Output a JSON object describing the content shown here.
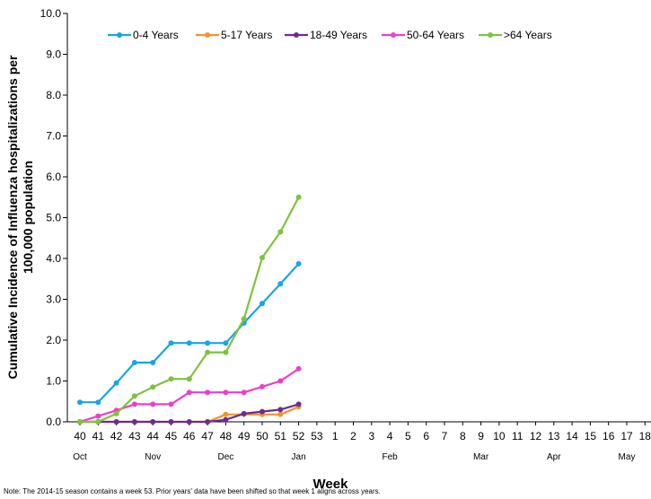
{
  "chart_data": {
    "type": "line",
    "xlabel": "Week",
    "ylabel_line1": "Cumulative Incidence of Influenza hospitalizations per",
    "ylabel_line2": "100,000 population",
    "ylim": [
      0,
      10
    ],
    "yticks": [
      "0.0",
      "1.0",
      "2.0",
      "3.0",
      "4.0",
      "5.0",
      "6.0",
      "7.0",
      "8.0",
      "9.0",
      "10.0"
    ],
    "x_ticks": [
      "40",
      "41",
      "42",
      "43",
      "44",
      "45",
      "46",
      "47",
      "48",
      "49",
      "50",
      "51",
      "52",
      "53",
      "1",
      "2",
      "3",
      "4",
      "5",
      "6",
      "7",
      "8",
      "9",
      "10",
      "11",
      "12",
      "13",
      "14",
      "15",
      "16",
      "17",
      "18"
    ],
    "months": [
      {
        "label": "Oct",
        "at": "40"
      },
      {
        "label": "Nov",
        "at": "44"
      },
      {
        "label": "Dec",
        "at": "48"
      },
      {
        "label": "Jan",
        "at": "52"
      },
      {
        "label": "Feb",
        "at": "4"
      },
      {
        "label": "Mar",
        "at": "9"
      },
      {
        "label": "Apr",
        "at": "13"
      },
      {
        "label": "May",
        "at": "17"
      }
    ],
    "legend_position": "top",
    "grid": false,
    "series": [
      {
        "name": "0-4 Years",
        "color": "#1aa3e8",
        "x": [
          "40",
          "41",
          "42",
          "43",
          "44",
          "45",
          "46",
          "47",
          "48",
          "49",
          "50",
          "51",
          "52"
        ],
        "values": [
          0.48,
          0.48,
          0.95,
          1.45,
          1.45,
          1.93,
          1.93,
          1.93,
          1.93,
          2.42,
          2.9,
          3.38,
          3.87
        ]
      },
      {
        "name": "5-17 Years",
        "color": "#f7922e",
        "x": [
          "40",
          "41",
          "42",
          "43",
          "44",
          "45",
          "46",
          "47",
          "48",
          "49",
          "50",
          "51",
          "52"
        ],
        "values": [
          0.0,
          0.0,
          0.0,
          0.0,
          0.0,
          0.0,
          0.0,
          0.0,
          0.18,
          0.18,
          0.18,
          0.18,
          0.37
        ]
      },
      {
        "name": "18-49 Years",
        "color": "#6b2c91",
        "x": [
          "40",
          "41",
          "42",
          "43",
          "44",
          "45",
          "46",
          "47",
          "48",
          "49",
          "50",
          "51",
          "52"
        ],
        "values": [
          0.0,
          0.0,
          0.0,
          0.0,
          0.0,
          0.0,
          0.0,
          0.0,
          0.05,
          0.2,
          0.25,
          0.3,
          0.43
        ]
      },
      {
        "name": "50-64 Years",
        "color": "#ee3fc7",
        "x": [
          "40",
          "41",
          "42",
          "43",
          "44",
          "45",
          "46",
          "47",
          "48",
          "49",
          "50",
          "51",
          "52"
        ],
        "values": [
          0.0,
          0.14,
          0.28,
          0.43,
          0.43,
          0.43,
          0.72,
          0.72,
          0.72,
          0.72,
          0.86,
          1.0,
          1.3
        ]
      },
      {
        "name": ">64 Years",
        "color": "#7fc241",
        "x": [
          "40",
          "41",
          "42",
          "43",
          "44",
          "45",
          "46",
          "47",
          "48",
          "49",
          "50",
          "51",
          "52"
        ],
        "values": [
          0.0,
          0.0,
          0.2,
          0.63,
          0.85,
          1.05,
          1.05,
          1.7,
          1.7,
          2.52,
          4.02,
          4.65,
          5.5
        ]
      }
    ]
  },
  "note": "Note: The 2014-15 season contains a week 53.  Prior years' data have been shifted so that week 1 aligns across years."
}
